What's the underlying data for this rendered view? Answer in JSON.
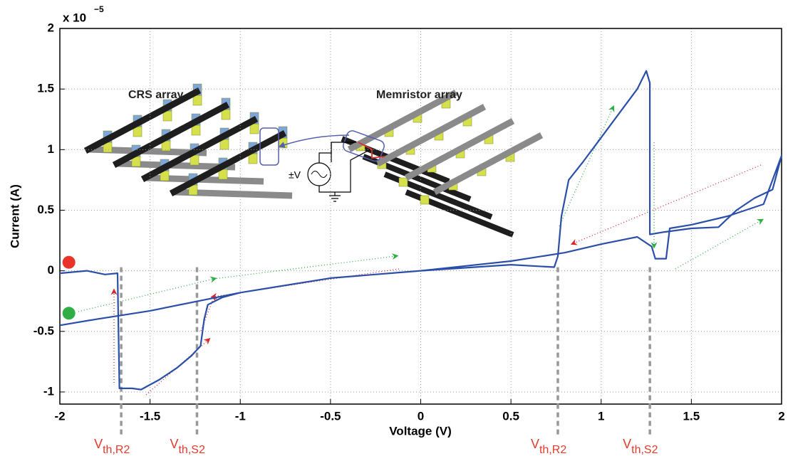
{
  "chart_data": {
    "type": "line",
    "x_label": "Voltage (V)",
    "y_label": "Current (A)",
    "y_multiplier": "x 10",
    "y_multiplier_exp": "−5",
    "xlim": [
      -2,
      2
    ],
    "ylim": [
      -1.1,
      2
    ],
    "xticks": [
      -2,
      -1.5,
      -1,
      -0.5,
      0,
      0.5,
      1,
      1.5,
      2
    ],
    "yticks": [
      -1,
      -0.5,
      0,
      0.5,
      1,
      1.5,
      2
    ],
    "grid": true,
    "series": [
      {
        "color": "#2b4fa8",
        "x": [
          -2,
          -1.85,
          -1.75,
          -1.68,
          -1.67,
          -1.6,
          -1.55,
          -1.45,
          -1.35,
          -1.27,
          -1.22,
          -1.2,
          -1.18,
          -1.1,
          -1,
          -0.5,
          0,
          0.5,
          0.74,
          0.76,
          0.78,
          0.82,
          0.9,
          1,
          1.1,
          1.2,
          1.25,
          1.27,
          1.27,
          1.35,
          1.5,
          1.65,
          1.75,
          1.85,
          1.95,
          2,
          1.9,
          1.7,
          1.5,
          1.38,
          1.36,
          1.3,
          1.28,
          1.2,
          1,
          0.8,
          0.5,
          0,
          -0.5,
          -1,
          -1.5,
          -1.8,
          -2
        ],
        "values": [
          -0.02,
          0.0,
          -0.03,
          -0.02,
          -0.97,
          -0.97,
          -0.98,
          -0.9,
          -0.8,
          -0.7,
          -0.62,
          -0.4,
          -0.28,
          -0.22,
          -0.18,
          -0.06,
          0,
          0.05,
          0.03,
          0.12,
          0.45,
          0.75,
          0.9,
          1.1,
          1.3,
          1.5,
          1.65,
          1.55,
          0.3,
          0.32,
          0.35,
          0.36,
          0.5,
          0.6,
          0.67,
          0.95,
          0.55,
          0.45,
          0.38,
          0.35,
          0.1,
          0.1,
          0.2,
          0.28,
          0.22,
          0.15,
          0.08,
          0.0,
          -0.06,
          -0.18,
          -0.33,
          -0.4,
          -0.45
        ]
      }
    ],
    "markers": [
      {
        "x": -1.95,
        "y": 0.07,
        "color": "#e8322a"
      },
      {
        "x": -1.95,
        "y": -0.35,
        "color": "#2fae46"
      }
    ],
    "annotations": [
      {
        "x": -1.66,
        "text": "V",
        "sub": "th,R2"
      },
      {
        "x": -1.24,
        "text": "V",
        "sub": "th,S2"
      },
      {
        "x": 0.76,
        "text": "V",
        "sub": "th,R2"
      },
      {
        "x": 1.27,
        "text": "V",
        "sub": "th,S2"
      }
    ],
    "inset_labels": [
      "CRS array",
      "Memristor array",
      "±V"
    ]
  }
}
